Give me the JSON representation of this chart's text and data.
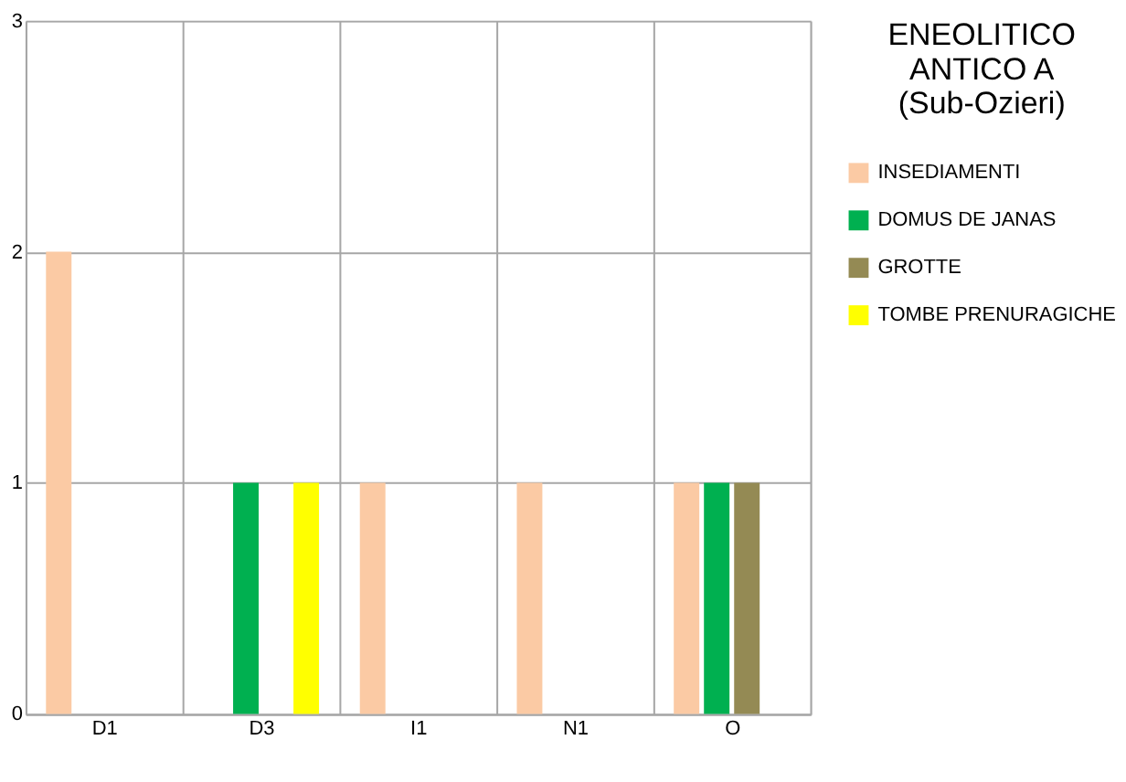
{
  "chart_data": {
    "type": "bar",
    "legend_title": "ENEOLITICO ANTICO A (Sub-Ozieri)",
    "categories": [
      "D1",
      "D3",
      "I1",
      "N1",
      "O"
    ],
    "series": [
      {
        "name": "INSEDIAMENTI",
        "color": "#fbcaa4",
        "values": [
          2,
          0,
          1,
          1,
          1
        ]
      },
      {
        "name": "DOMUS DE JANAS",
        "color": "#00b050",
        "values": [
          0,
          1,
          0,
          0,
          1
        ]
      },
      {
        "name": "GROTTE",
        "color": "#948a54",
        "values": [
          0,
          0,
          0,
          0,
          1
        ]
      },
      {
        "name": "TOMBE PRENURAGICHE",
        "color": "#ffff00",
        "values": [
          0,
          1,
          0,
          0,
          0
        ]
      }
    ],
    "ylim": [
      0,
      3
    ],
    "yticks": [
      0,
      1,
      2,
      3
    ],
    "grid": true,
    "legend": "right"
  }
}
